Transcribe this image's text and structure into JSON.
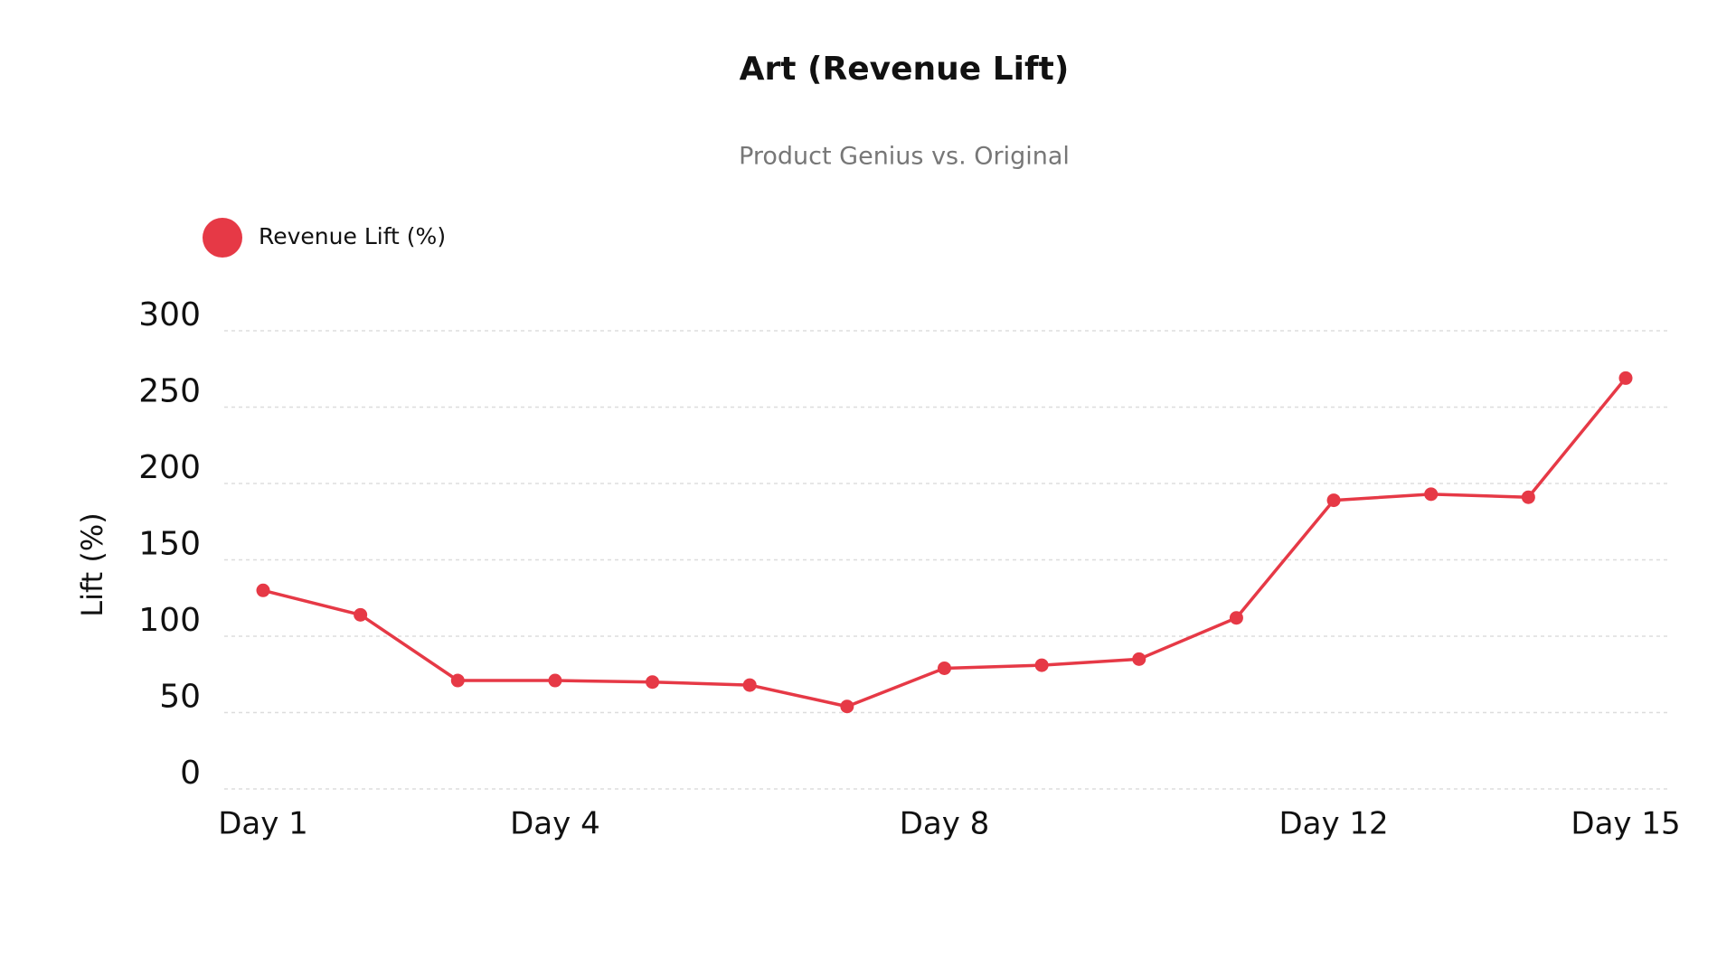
{
  "chart_data": {
    "type": "line",
    "title": "Art (Revenue Lift)",
    "subtitle": "Product Genius vs. Original",
    "y_label": "Lift (%)",
    "categories": [
      "Day 1",
      null,
      null,
      "Day 4",
      null,
      null,
      null,
      "Day 8",
      null,
      null,
      null,
      "Day 12",
      null,
      null,
      "Day 15"
    ],
    "series": [
      {
        "name": "Revenue Lift (%)",
        "color": "#e63946",
        "values": [
          130,
          114,
          71,
          71,
          70,
          68,
          54,
          79,
          81,
          85,
          112,
          189,
          193,
          191,
          269
        ]
      }
    ],
    "ylim": [
      0,
      300
    ],
    "yticks": [
      0,
      50,
      100,
      150,
      200,
      250,
      300
    ],
    "grid": true,
    "legend": "top-left"
  }
}
